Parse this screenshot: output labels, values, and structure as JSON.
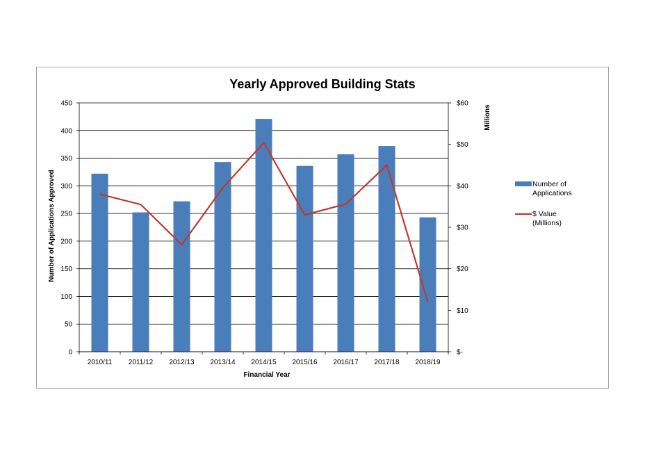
{
  "chart_data": {
    "type": "bar",
    "title": "Yearly Approved Building Stats",
    "xlabel": "Financial Year",
    "ylabel": "Number of Applications Approved",
    "y2label": "Millions",
    "categories": [
      "2010/11",
      "2011/12",
      "2012/13",
      "2013/14",
      "2014/15",
      "2015/16",
      "2016/17",
      "2017/18",
      "2018/19"
    ],
    "ylim": [
      0,
      450
    ],
    "yticks": [
      0,
      50,
      100,
      150,
      200,
      250,
      300,
      350,
      400,
      450
    ],
    "y2lim": [
      0,
      60
    ],
    "y2ticks": [
      0,
      10,
      20,
      30,
      40,
      50,
      60
    ],
    "y2ticklabels": [
      "$-",
      "$10",
      "$20",
      "$30",
      "$40",
      "$50",
      "$60"
    ],
    "grid": true,
    "legend_position": "right",
    "series": [
      {
        "name_lines": [
          "Number of",
          "Applications"
        ],
        "type": "bar",
        "axis": "left",
        "color": "#4a7ebb",
        "values": [
          322,
          252,
          272,
          343,
          421,
          336,
          357,
          372,
          243
        ]
      },
      {
        "name_lines": [
          "$ Value",
          "(Millions)"
        ],
        "type": "line",
        "axis": "right",
        "color": "#c0392b",
        "values": [
          38,
          35.5,
          25.8,
          39.5,
          50.4,
          33,
          35.6,
          45,
          12
        ]
      }
    ]
  }
}
